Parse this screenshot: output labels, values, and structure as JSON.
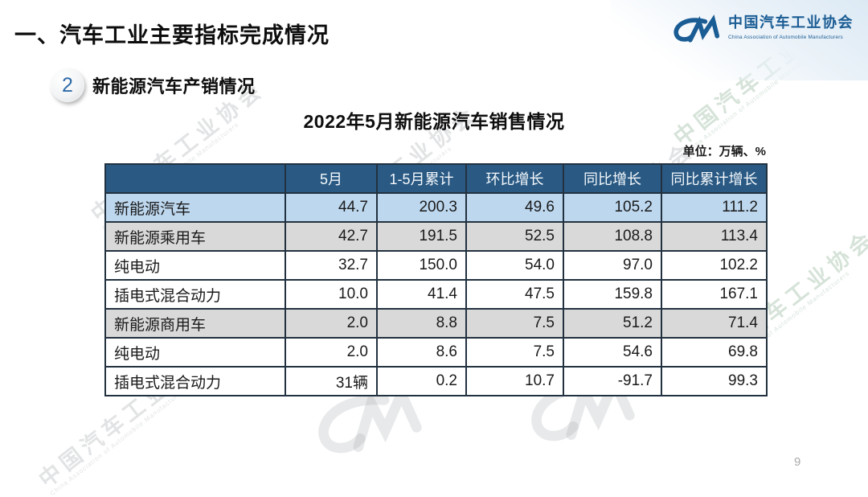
{
  "header": {
    "section_title": "一、汽车工业主要指标完成情况",
    "logo": {
      "org_cn": "中国汽车工业协会",
      "org_en": "China Association of Automobile Manufacturers"
    }
  },
  "section": {
    "badge_number": "2",
    "title": "新能源汽车产销情况"
  },
  "content": {
    "table_title": "2022年5月新能源汽车销售情况",
    "unit_note": "单位：万辆、%"
  },
  "table": {
    "columns": [
      "",
      "5月",
      "1-5月累计",
      "环比增长",
      "同比增长",
      "同比累计增长"
    ],
    "rows": [
      {
        "label": "新能源汽车",
        "indent": 0,
        "style": "blue",
        "values": [
          "44.7",
          "200.3",
          "49.6",
          "105.2",
          "111.2"
        ]
      },
      {
        "label": "新能源乘用车",
        "indent": 1,
        "style": "gray",
        "values": [
          "42.7",
          "191.5",
          "52.5",
          "108.8",
          "113.4"
        ]
      },
      {
        "label": "纯电动",
        "indent": 2,
        "style": "white",
        "values": [
          "32.7",
          "150.0",
          "54.0",
          "97.0",
          "102.2"
        ]
      },
      {
        "label": "插电式混合动力",
        "indent": 2,
        "style": "white",
        "values": [
          "10.0",
          "41.4",
          "47.5",
          "159.8",
          "167.1"
        ]
      },
      {
        "label": "新能源商用车",
        "indent": 1,
        "style": "gray",
        "values": [
          "2.0",
          "8.8",
          "7.5",
          "51.2",
          "71.4"
        ]
      },
      {
        "label": "纯电动",
        "indent": 2,
        "style": "white",
        "values": [
          "2.0",
          "8.6",
          "7.5",
          "54.6",
          "69.8"
        ]
      },
      {
        "label": "插电式混合动力",
        "indent": 2,
        "style": "white",
        "values": [
          "31辆",
          "0.2",
          "10.7",
          "-91.7",
          "99.3"
        ]
      }
    ]
  },
  "footer": {
    "page_number": "9"
  },
  "watermark": {
    "text_cn": "中国汽车工业协会",
    "text_en": "China Association of Automobile Manufacturers"
  },
  "colors": {
    "header_bg": "#2a5a84",
    "row_blue": "#bdd7ee",
    "row_gray": "#d9d9d9",
    "border": "#22313f",
    "logo_blue": "#1a5c94"
  }
}
